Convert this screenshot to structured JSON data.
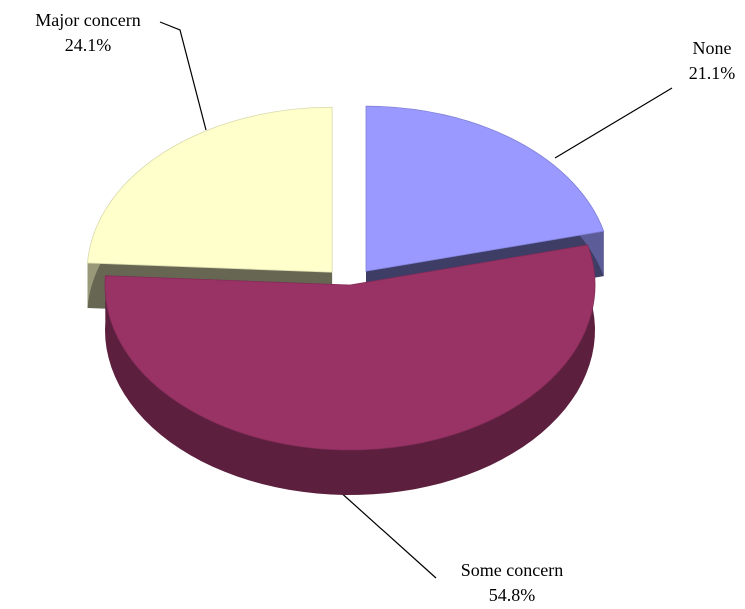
{
  "chart_data": {
    "type": "pie",
    "categories": [
      "None",
      "Some concern",
      "Major concern"
    ],
    "values": [
      21.1,
      54.8,
      24.1
    ],
    "value_labels": [
      "21.1%",
      "54.8%",
      "24.1%"
    ],
    "colors": [
      "#9999ff",
      "#993366",
      "#ffffcc"
    ]
  }
}
